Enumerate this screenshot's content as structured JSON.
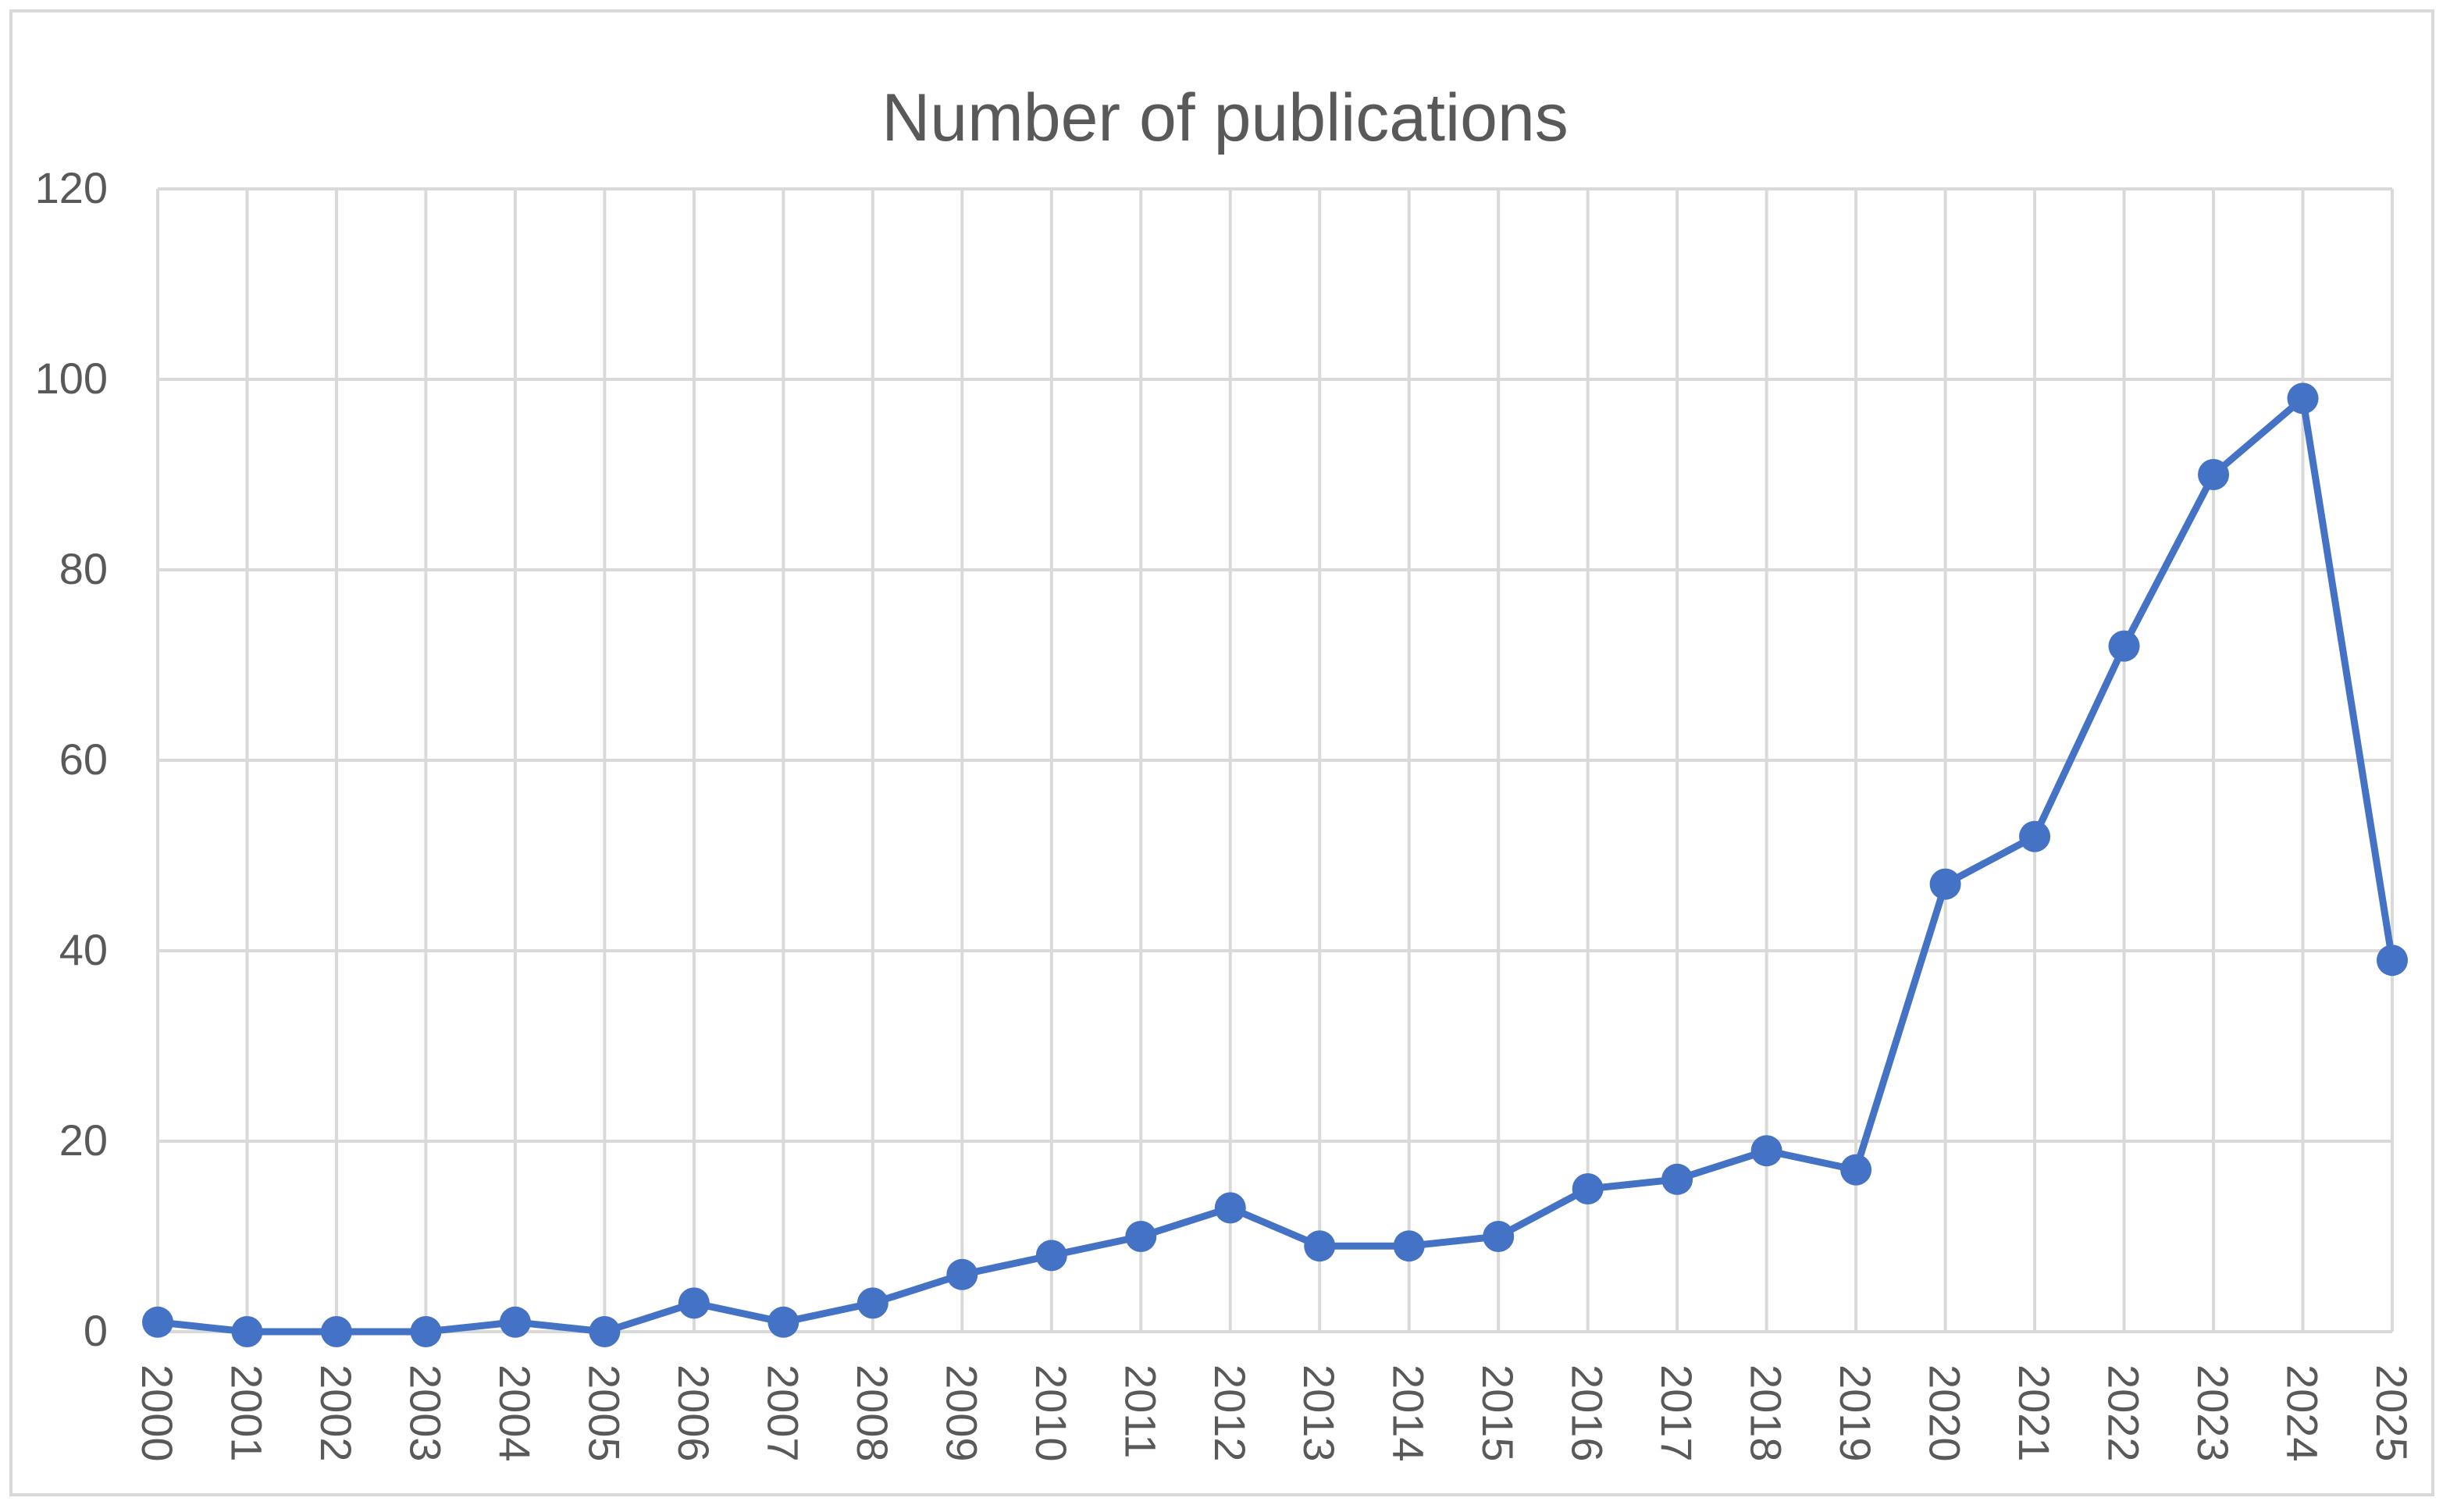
{
  "chart_data": {
    "type": "line",
    "title": "Number of publications",
    "xlabel": "",
    "ylabel": "",
    "categories": [
      "2000",
      "2001",
      "2002",
      "2003",
      "2004",
      "2005",
      "2006",
      "2007",
      "2008",
      "2009",
      "2010",
      "2011",
      "2012",
      "2013",
      "2014",
      "2015",
      "2016",
      "2017",
      "2018",
      "2019",
      "2020",
      "2021",
      "2022",
      "2023",
      "2024",
      "2025"
    ],
    "series": [
      {
        "values": [
          1,
          0,
          0,
          0,
          1,
          0,
          3,
          1,
          3,
          6,
          8,
          10,
          13,
          9,
          9,
          10,
          15,
          16,
          19,
          17,
          47,
          52,
          72,
          90,
          98,
          39
        ]
      }
    ],
    "ylim": [
      0,
      120
    ],
    "yticks": [
      0,
      20,
      40,
      60,
      80,
      100,
      120
    ],
    "grid": true,
    "legend": "none",
    "colors": {
      "series": "#4472c4",
      "grid": "#d9d9d9",
      "text": "#595959",
      "border": "#d9d9d9"
    }
  }
}
